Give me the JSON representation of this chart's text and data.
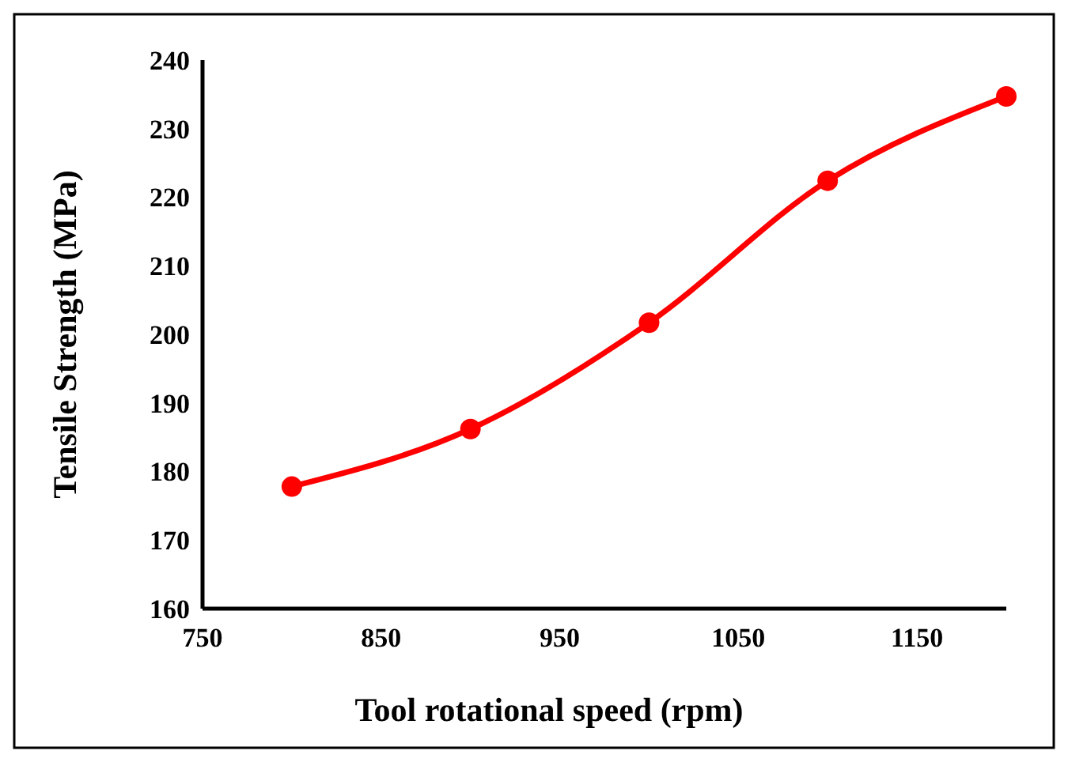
{
  "chart_data": {
    "type": "line",
    "xlabel": "Tool rotational speed (rpm)",
    "ylabel": "Tensile Strength (MPa)",
    "x": [
      800,
      900,
      1000,
      1100,
      1200
    ],
    "series": [
      {
        "color": "#ff0000",
        "values": [
          177.8,
          186.2,
          201.7,
          222.4,
          234.7
        ]
      }
    ],
    "xlim": [
      750,
      1200
    ],
    "xticks": [
      750,
      850,
      950,
      1050,
      1150
    ],
    "ylim": [
      160,
      240
    ],
    "yticks": [
      160,
      170,
      180,
      190,
      200,
      210,
      220,
      230,
      240
    ],
    "grid": false,
    "marker": "circle",
    "line_style": "solid"
  }
}
